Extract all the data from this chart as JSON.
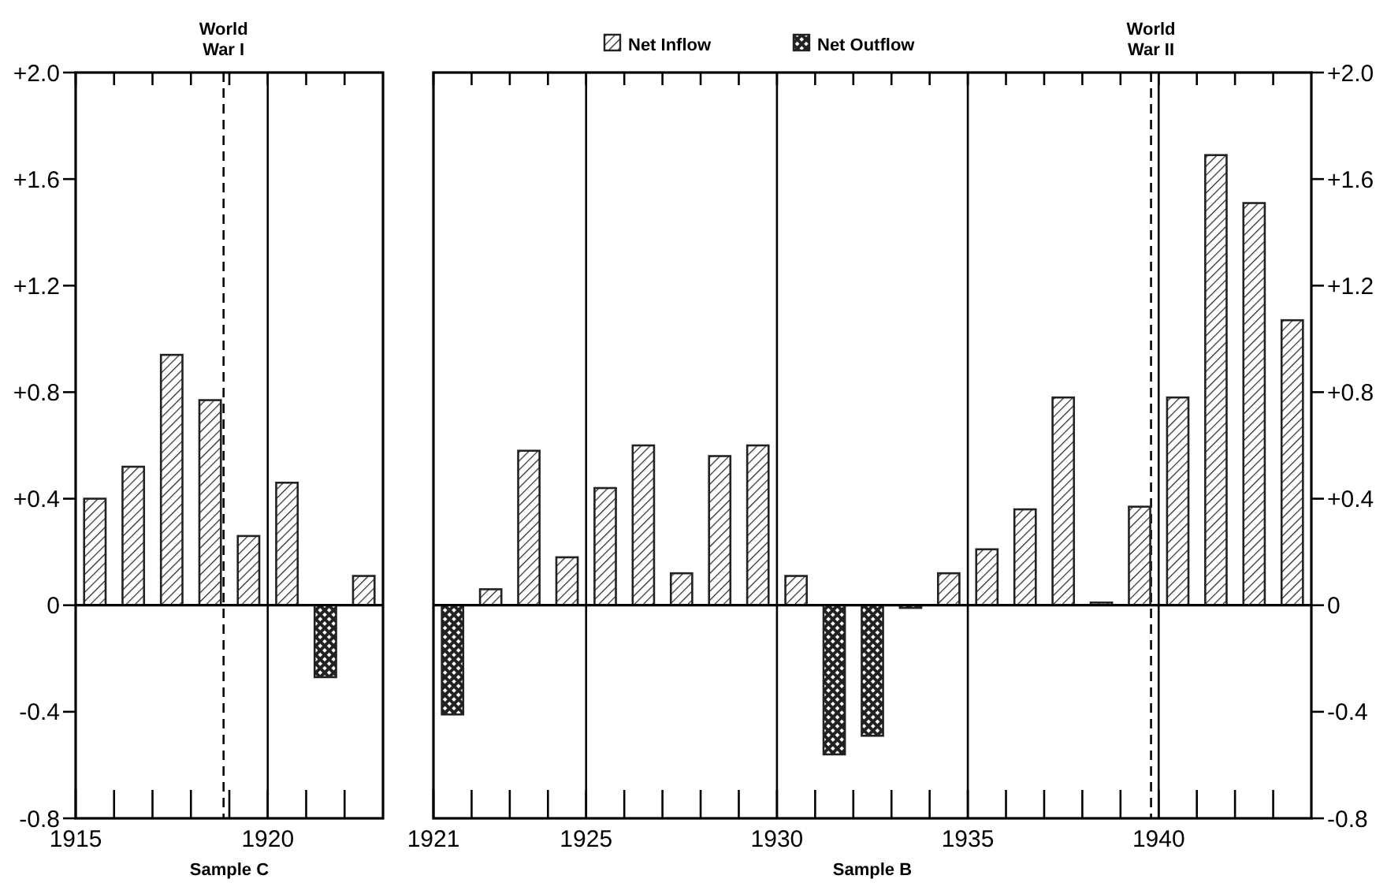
{
  "chart_data": [
    {
      "type": "bar",
      "xlabel": "Sample C",
      "x": [
        1915.5,
        1916.5,
        1917.5,
        1918.5,
        1919.5,
        1920.5,
        1921.5,
        1922.5
      ],
      "series": [
        {
          "color": "#222222",
          "values": [
            0.4,
            0.52,
            0.94,
            0.77,
            0.26,
            0.46,
            null,
            0.11
          ]
        },
        {
          "color": "#222222",
          "values": [
            null,
            null,
            null,
            null,
            null,
            null,
            -0.27,
            null
          ]
        }
      ],
      "xlim": [
        1915,
        1923
      ],
      "xticks": [
        1915,
        {
          "value": 1916,
          "label": null
        },
        {
          "value": 1917,
          "label": null
        },
        {
          "value": 1918,
          "label": null
        },
        {
          "value": 1919,
          "label": null
        },
        1920,
        {
          "value": 1921,
          "label": null
        },
        {
          "value": 1922,
          "label": null
        }
      ],
      "ylim": [
        -0.8,
        2.0
      ],
      "yticks": [
        {
          "value": -0.8,
          "label": "-0.8"
        },
        {
          "value": -0.4,
          "label": "-0.4"
        },
        0,
        {
          "value": 0.4,
          "label": "+0.4"
        },
        {
          "value": 0.8,
          "label": "+0.8"
        },
        {
          "value": 1.2,
          "label": "+1.2"
        },
        {
          "value": 1.6,
          "label": "+1.6"
        },
        {
          "value": 2.0,
          "label": "+2.0"
        }
      ],
      "ref_lines": [
        {
          "axis": "x",
          "value": 1918.85,
          "label": "World War I",
          "line_style": "dashed"
        },
        {
          "axis": "x",
          "value": 1920
        }
      ]
    },
    {
      "type": "bar",
      "xlabel": "Sample B",
      "legend": "top",
      "x": [
        1921.5,
        1922.5,
        1923.5,
        1924.5,
        1925.5,
        1926.5,
        1927.5,
        1928.5,
        1929.5,
        1930.5,
        1931.5,
        1932.5,
        1933.5,
        1934.5,
        1935.5,
        1936.5,
        1937.5,
        1938.5,
        1939.5,
        1940.5,
        1941.5,
        1942.5,
        1943.5
      ],
      "series": [
        {
          "name": "Net Inflow",
          "color": "#222222",
          "axis": "y2",
          "values": [
            null,
            0.06,
            0.58,
            0.18,
            0.44,
            0.6,
            0.12,
            0.56,
            0.6,
            0.11,
            null,
            null,
            null,
            0.12,
            0.21,
            0.36,
            0.78,
            0.01,
            0.37,
            0.78,
            1.69,
            1.51,
            1.07
          ]
        },
        {
          "name": "Net Outflow",
          "color": "#222222",
          "axis": "y2",
          "values": [
            -0.41,
            null,
            null,
            null,
            null,
            null,
            null,
            null,
            null,
            null,
            -0.56,
            -0.49,
            -0.01,
            null,
            null,
            null,
            null,
            null,
            null,
            null,
            null,
            null,
            null
          ]
        }
      ],
      "xlim": [
        1921,
        1944
      ],
      "xticks": [
        1921,
        {
          "value": 1922,
          "label": null
        },
        {
          "value": 1923,
          "label": null
        },
        {
          "value": 1924,
          "label": null
        },
        1925,
        {
          "value": 1926,
          "label": null
        },
        {
          "value": 1927,
          "label": null
        },
        {
          "value": 1928,
          "label": null
        },
        {
          "value": 1929,
          "label": null
        },
        1930,
        {
          "value": 1931,
          "label": null
        },
        {
          "value": 1932,
          "label": null
        },
        {
          "value": 1933,
          "label": null
        },
        {
          "value": 1934,
          "label": null
        },
        1935,
        {
          "value": 1936,
          "label": null
        },
        {
          "value": 1937,
          "label": null
        },
        {
          "value": 1938,
          "label": null
        },
        {
          "value": 1939,
          "label": null
        },
        1940,
        {
          "value": 1941,
          "label": null
        },
        {
          "value": 1942,
          "label": null
        },
        {
          "value": 1943,
          "label": null
        }
      ],
      "y2lim": [
        -0.8,
        2.0
      ],
      "y2ticks": [
        {
          "value": -0.8,
          "label": "-0.8"
        },
        {
          "value": -0.4,
          "label": "-0.4"
        },
        0,
        {
          "value": 0.4,
          "label": "+0.4"
        },
        {
          "value": 0.8,
          "label": "+0.8"
        },
        {
          "value": 1.2,
          "label": "+1.2"
        },
        {
          "value": 1.6,
          "label": "+1.6"
        },
        {
          "value": 2.0,
          "label": "+2.0"
        }
      ],
      "ref_lines": [
        {
          "axis": "x",
          "value": 1925
        },
        {
          "axis": "x",
          "value": 1930
        },
        {
          "axis": "x",
          "value": 1935
        },
        {
          "axis": "x",
          "value": 1939.8,
          "label": "World War II",
          "line_style": "dashed"
        },
        {
          "axis": "x",
          "value": 1940
        }
      ]
    }
  ]
}
